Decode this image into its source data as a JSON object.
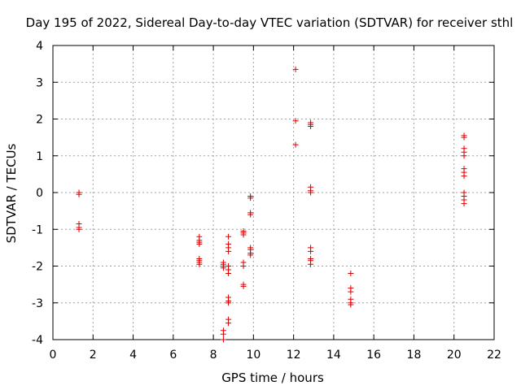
{
  "chart_data": {
    "type": "scatter",
    "title": "Day 195 of 2022, Sidereal Day-to-day VTEC variation (SDTVAR) for receiver sthl",
    "xlabel": "GPS time / hours",
    "ylabel": "SDTVAR / TECUs",
    "xlim": [
      0,
      22
    ],
    "ylim": [
      -4,
      4
    ],
    "xticks": [
      0,
      2,
      4,
      6,
      8,
      10,
      12,
      14,
      16,
      18,
      20,
      22
    ],
    "yticks": [
      -4,
      -3,
      -2,
      -1,
      0,
      1,
      2,
      3,
      4
    ],
    "xtick_labels": [
      "0",
      "2",
      "4",
      "6",
      "8",
      "10",
      "12",
      "14",
      "16",
      "18",
      "20",
      "22"
    ],
    "ytick_labels": [
      "-4",
      "-3",
      "-2",
      "-1",
      "0",
      "1",
      "2",
      "3",
      "4"
    ],
    "grid": true,
    "legend": "none",
    "marker": "+",
    "series": [
      {
        "name": "SDTVAR",
        "color": "#dd0000",
        "points": [
          {
            "x": 1.3,
            "y": 0.0
          },
          {
            "x": 1.3,
            "y": -0.05
          },
          {
            "x": 1.3,
            "y": -0.85
          },
          {
            "x": 1.3,
            "y": -0.95
          },
          {
            "x": 1.3,
            "y": -1.0
          },
          {
            "x": 7.3,
            "y": -1.2
          },
          {
            "x": 7.3,
            "y": -1.3
          },
          {
            "x": 7.3,
            "y": -1.35
          },
          {
            "x": 7.3,
            "y": -1.4
          },
          {
            "x": 7.3,
            "y": -1.8
          },
          {
            "x": 7.3,
            "y": -1.85
          },
          {
            "x": 7.3,
            "y": -1.9
          },
          {
            "x": 7.3,
            "y": -1.95
          },
          {
            "x": 8.5,
            "y": -1.9
          },
          {
            "x": 8.5,
            "y": -1.95
          },
          {
            "x": 8.5,
            "y": -2.0
          },
          {
            "x": 8.5,
            "y": -2.05
          },
          {
            "x": 8.5,
            "y": -3.75
          },
          {
            "x": 8.5,
            "y": -3.85
          },
          {
            "x": 8.5,
            "y": -4.0
          },
          {
            "x": 8.75,
            "y": -1.2
          },
          {
            "x": 8.75,
            "y": -1.4
          },
          {
            "x": 8.75,
            "y": -1.5
          },
          {
            "x": 8.75,
            "y": -1.6
          },
          {
            "x": 8.75,
            "y": -2.0
          },
          {
            "x": 8.75,
            "y": -2.1
          },
          {
            "x": 8.75,
            "y": -2.2
          },
          {
            "x": 8.75,
            "y": -2.85
          },
          {
            "x": 8.75,
            "y": -2.95
          },
          {
            "x": 8.75,
            "y": -3.0
          },
          {
            "x": 8.75,
            "y": -3.45
          },
          {
            "x": 8.75,
            "y": -3.55
          },
          {
            "x": 9.5,
            "y": -1.05
          },
          {
            "x": 9.5,
            "y": -1.1
          },
          {
            "x": 9.5,
            "y": -1.15
          },
          {
            "x": 9.5,
            "y": -1.9
          },
          {
            "x": 9.5,
            "y": -2.0
          },
          {
            "x": 9.5,
            "y": -2.5
          },
          {
            "x": 9.5,
            "y": -2.55
          },
          {
            "x": 9.85,
            "y": -0.1
          },
          {
            "x": 9.85,
            "y": -0.15
          },
          {
            "x": 9.85,
            "y": -0.55
          },
          {
            "x": 9.85,
            "y": -0.6
          },
          {
            "x": 9.85,
            "y": -1.5
          },
          {
            "x": 9.85,
            "y": -1.55
          },
          {
            "x": 9.85,
            "y": -1.65
          },
          {
            "x": 9.85,
            "y": -1.7
          },
          {
            "x": 12.1,
            "y": 3.35
          },
          {
            "x": 12.1,
            "y": 1.95
          },
          {
            "x": 12.1,
            "y": 1.3
          },
          {
            "x": 12.85,
            "y": 1.9
          },
          {
            "x": 12.85,
            "y": 1.85
          },
          {
            "x": 12.85,
            "y": 1.8
          },
          {
            "x": 12.85,
            "y": 0.15
          },
          {
            "x": 12.85,
            "y": 0.05
          },
          {
            "x": 12.85,
            "y": 0.0
          },
          {
            "x": 12.85,
            "y": -1.5
          },
          {
            "x": 12.85,
            "y": -1.6
          },
          {
            "x": 12.85,
            "y": -1.8
          },
          {
            "x": 12.85,
            "y": -1.85
          },
          {
            "x": 12.85,
            "y": -1.95
          },
          {
            "x": 14.85,
            "y": -2.2
          },
          {
            "x": 14.85,
            "y": -2.6
          },
          {
            "x": 14.85,
            "y": -2.7
          },
          {
            "x": 14.85,
            "y": -2.9
          },
          {
            "x": 14.85,
            "y": -3.0
          },
          {
            "x": 14.85,
            "y": -3.05
          },
          {
            "x": 20.5,
            "y": 1.55
          },
          {
            "x": 20.5,
            "y": 1.5
          },
          {
            "x": 20.5,
            "y": 1.2
          },
          {
            "x": 20.5,
            "y": 1.1
          },
          {
            "x": 20.5,
            "y": 1.0
          },
          {
            "x": 20.5,
            "y": 0.65
          },
          {
            "x": 20.5,
            "y": 0.55
          },
          {
            "x": 20.5,
            "y": 0.45
          },
          {
            "x": 20.5,
            "y": 0.0
          },
          {
            "x": 20.5,
            "y": -0.1
          },
          {
            "x": 20.5,
            "y": -0.2
          },
          {
            "x": 20.5,
            "y": -0.3
          }
        ]
      }
    ]
  }
}
